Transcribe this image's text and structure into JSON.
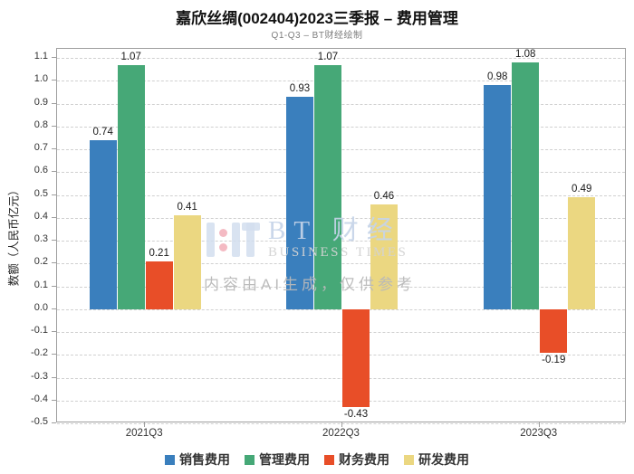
{
  "title": "嘉欣丝绸(002404)2023三季报 – 费用管理",
  "subtitle": "Q1-Q3 – BT财经绘制",
  "watermark": {
    "brand_cn": "BT 财经",
    "brand_en": "BUSINESS TIMES",
    "ai_notice": "内容由AI生成，仅供参考"
  },
  "chart_data": {
    "type": "bar",
    "title": "嘉欣丝绸(002404)2023三季报 – 费用管理",
    "subtitle": "Q1-Q3 – BT财经绘制",
    "xlabel": "",
    "ylabel": "数额（人民币亿元）",
    "categories": [
      "2021Q3",
      "2022Q3",
      "2023Q3"
    ],
    "series": [
      {
        "name": "销售费用",
        "color": "#3a7fbd",
        "values": [
          0.74,
          0.93,
          0.98
        ]
      },
      {
        "name": "管理费用",
        "color": "#46a877",
        "values": [
          1.07,
          1.07,
          1.08
        ]
      },
      {
        "name": "财务费用",
        "color": "#e84e28",
        "values": [
          0.21,
          -0.43,
          -0.19
        ]
      },
      {
        "name": "研发费用",
        "color": "#ebd781",
        "values": [
          0.41,
          0.46,
          0.49
        ]
      }
    ],
    "ylim": [
      -0.5,
      1.1
    ],
    "ytick_step": 0.1,
    "grid": true,
    "gridline_style": "dashed",
    "legend_position": "bottom",
    "value_labels": true
  }
}
